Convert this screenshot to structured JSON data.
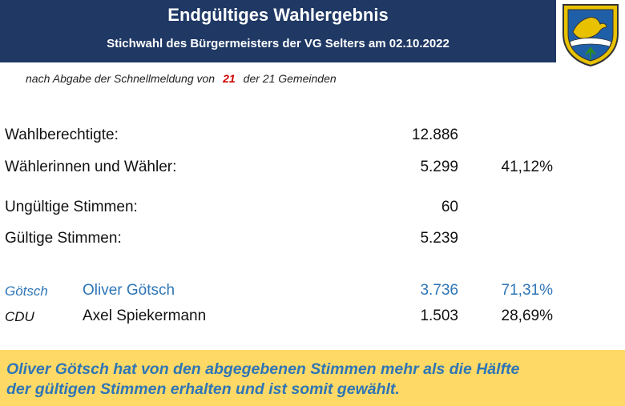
{
  "header": {
    "title": "Endgültiges Wahlergebnis",
    "subtitle": "Stichwahl des Bürgermeisters der VG Selters am 02.10.2022"
  },
  "progress": {
    "prefix": "nach Abgabe der Schnellmeldung von",
    "count": "21",
    "suffix": "der 21 Gemeinden"
  },
  "stats": [
    {
      "label": "Wahlberechtigte:",
      "value": "12.886",
      "pct": ""
    },
    {
      "label": "Wählerinnen und Wähler:",
      "value": "5.299",
      "pct": "41,12%"
    },
    {
      "label": "Ungültige Stimmen:",
      "value": "60",
      "pct": ""
    },
    {
      "label": "Gültige Stimmen:",
      "value": "5.239",
      "pct": ""
    }
  ],
  "candidates": [
    {
      "party": "Götsch",
      "name": "Oliver Götsch",
      "votes": "3.736",
      "pct": "71,31%"
    },
    {
      "party": "CDU",
      "name": "Axel Spiekermann",
      "votes": "1.503",
      "pct": "28,69%"
    }
  ],
  "banner": {
    "line1": "Oliver Götsch hat von den abgegebenen Stimmen mehr als die Hälfte",
    "line2": "der gültigen Stimmen erhalten und ist somit gewählt."
  },
  "colors": {
    "header_bg": "#1f3864",
    "winner": "#2e75b6",
    "banner_bg": "#ffd966",
    "count": "#d00000"
  },
  "icons": {
    "crest": "coat-of-arms-icon"
  }
}
